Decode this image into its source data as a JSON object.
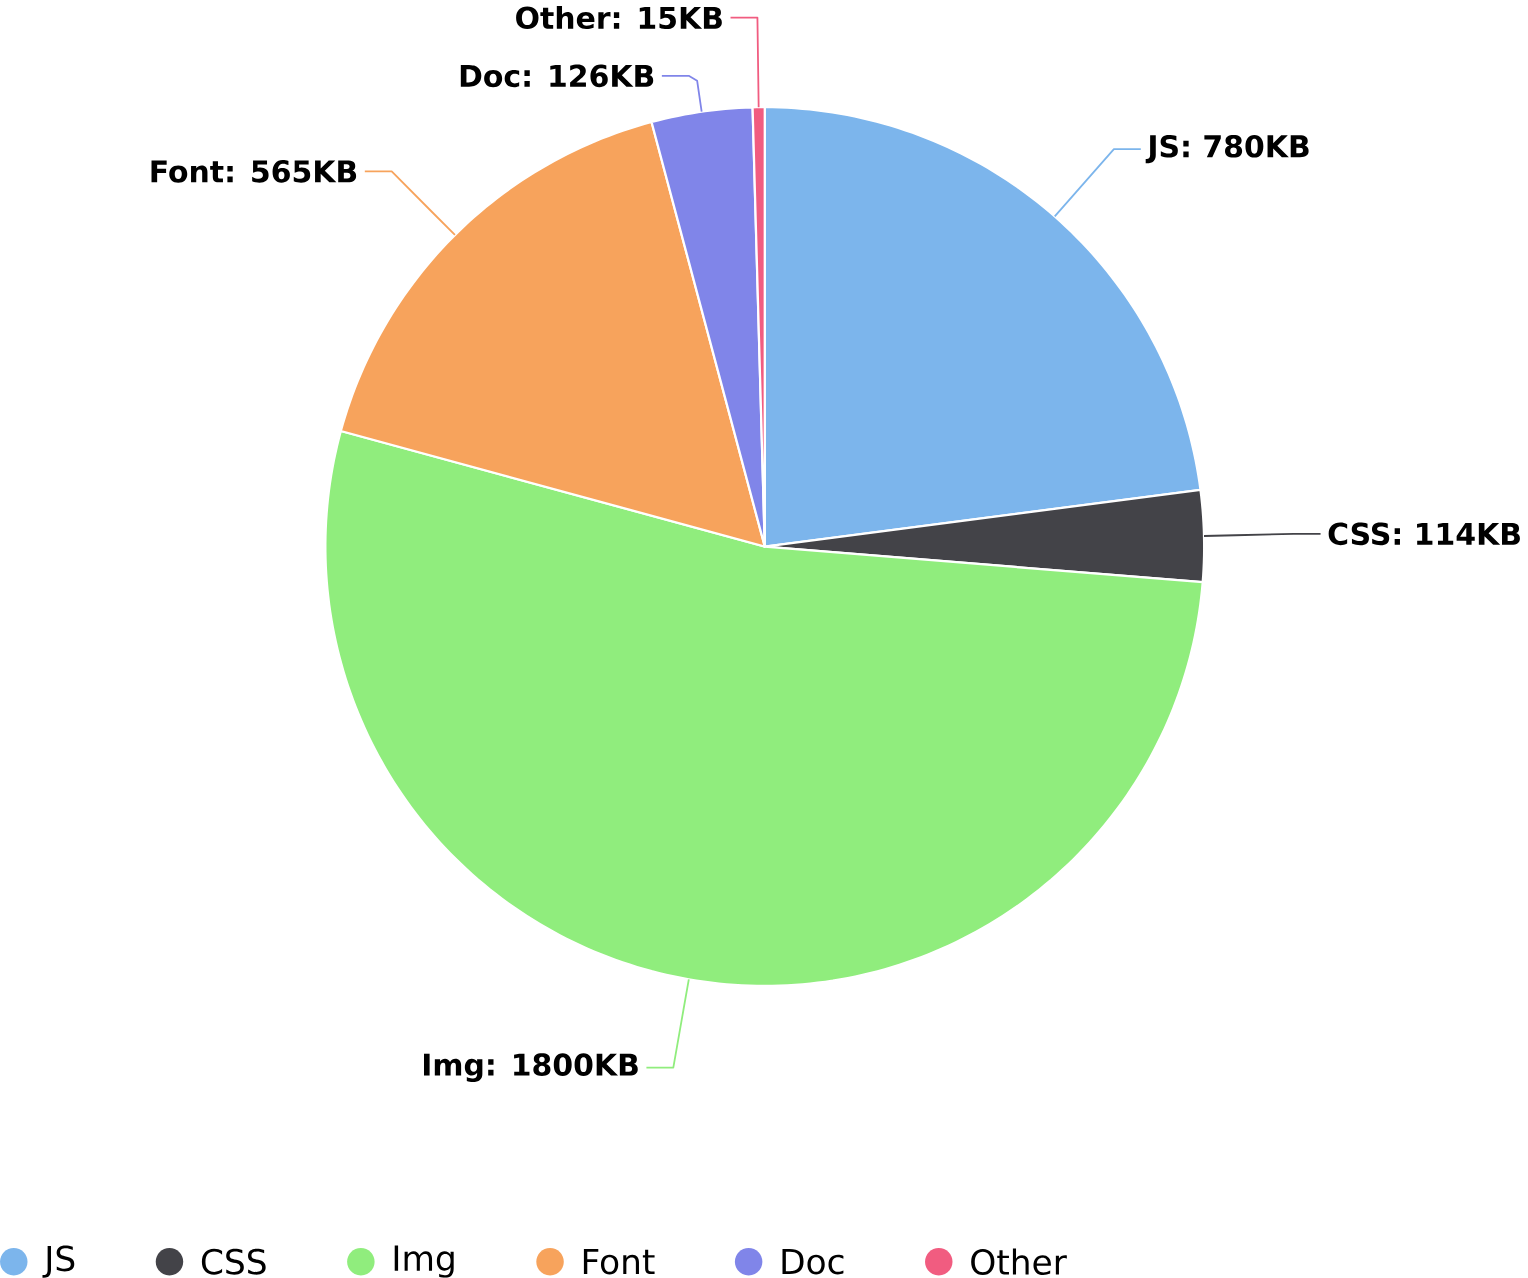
{
  "chart_data": {
    "type": "pie",
    "categories": [
      "JS",
      "CSS",
      "Img",
      "Font",
      "Doc",
      "Other"
    ],
    "values": [
      780,
      114,
      1800,
      565,
      126,
      15
    ],
    "value_labels": [
      "JS: 780KB",
      "CSS: 114KB",
      "Img: 1800KB",
      "Font: 565KB",
      "Doc: 126KB",
      "Other: 15KB"
    ],
    "colors": [
      "#7cb5ec",
      "#434348",
      "#90ed7d",
      "#f7a35c",
      "#8085e9",
      "#f15c80"
    ],
    "legend": "bottom"
  }
}
